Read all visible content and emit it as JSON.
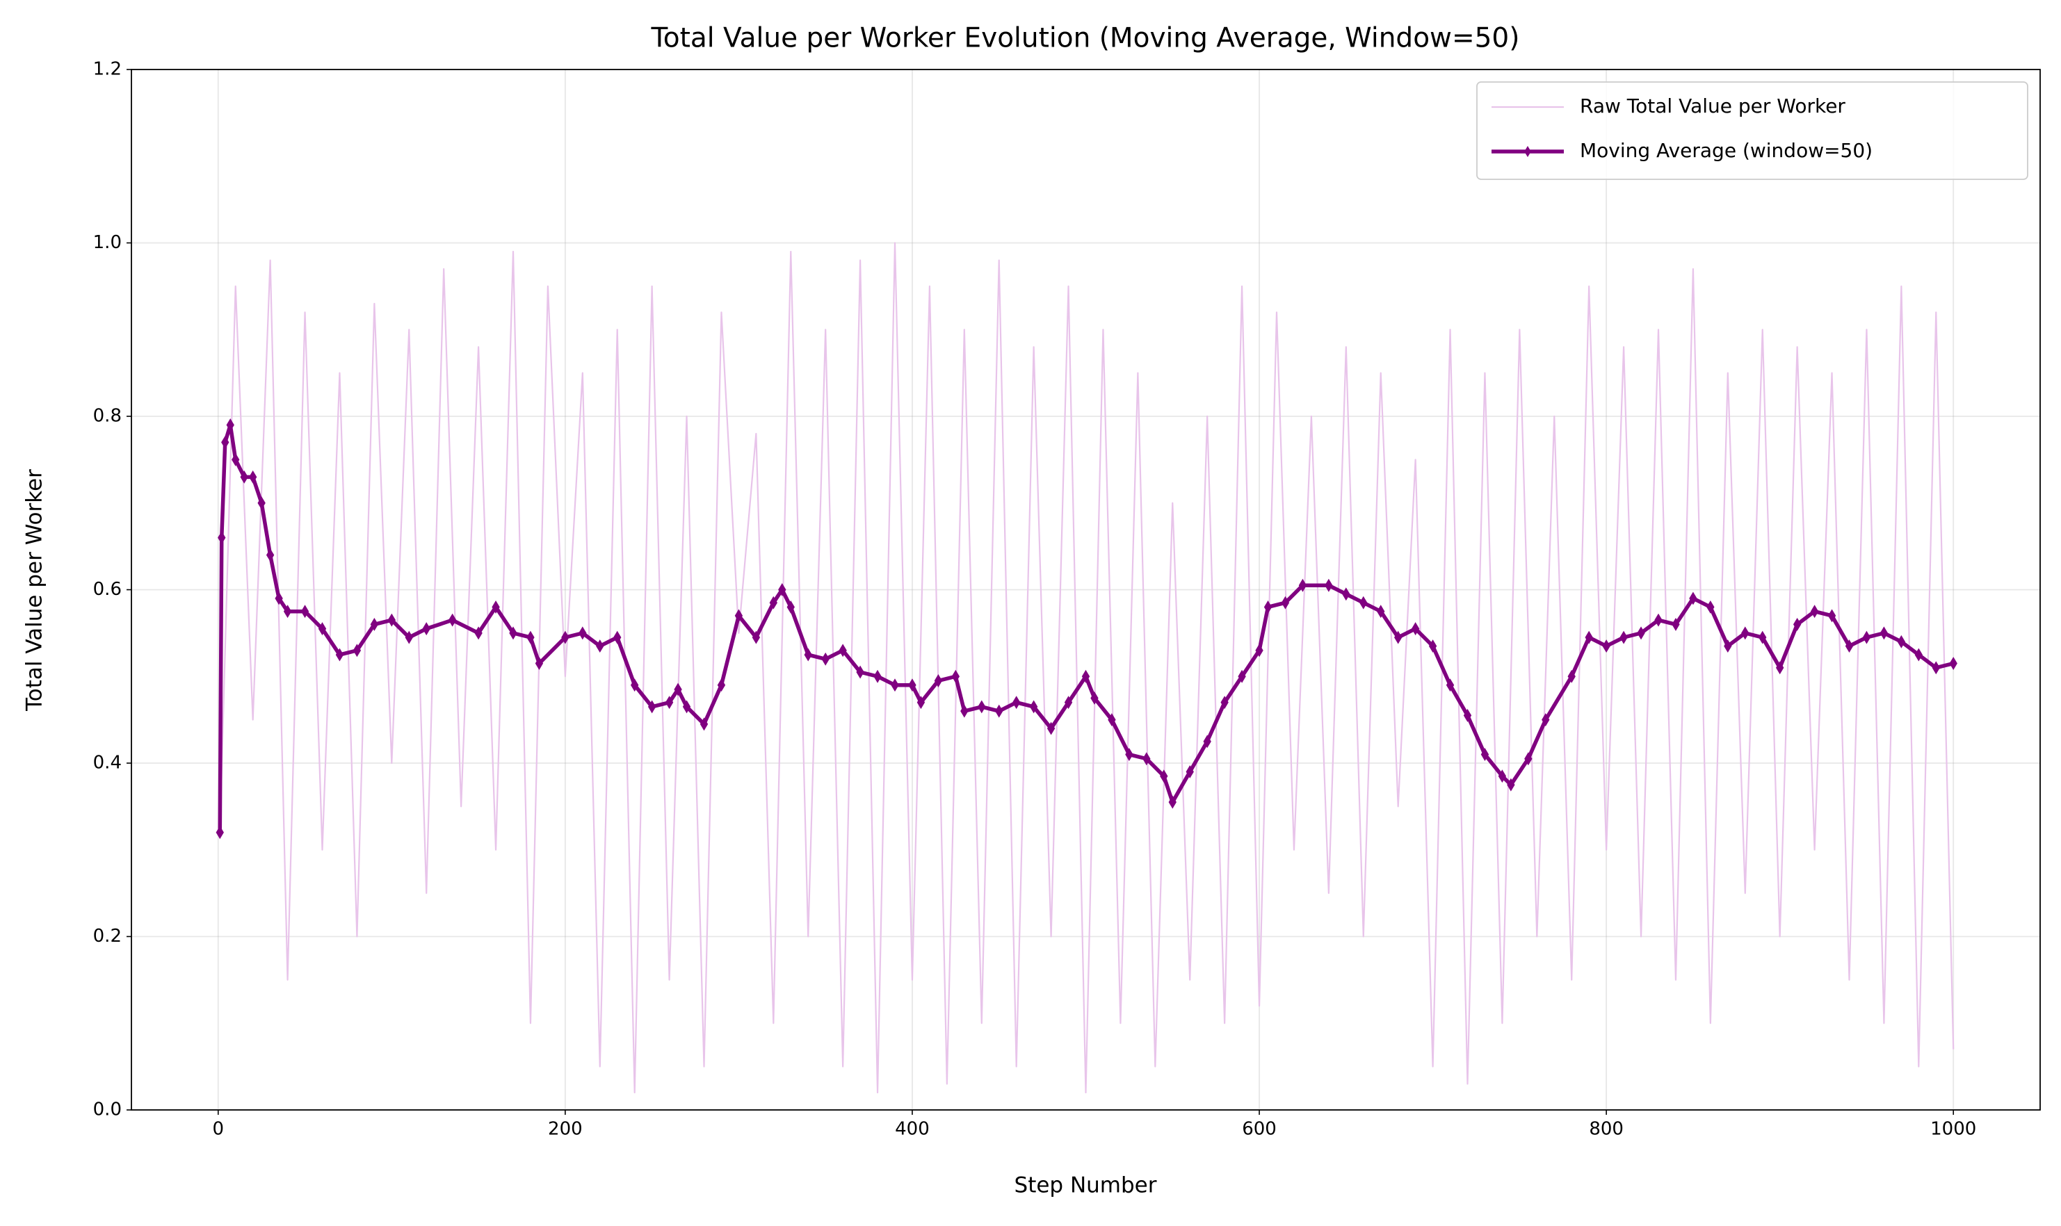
{
  "chart_data": {
    "type": "line",
    "title": "Total Value per Worker Evolution (Moving Average, Window=50)",
    "x_label": "Step Number",
    "y_label": "Total Value per Worker",
    "xlim": [
      -50,
      1050
    ],
    "ylim": [
      0,
      1.2
    ],
    "xticks": [
      0,
      200,
      400,
      600,
      800,
      1000
    ],
    "yticks": [
      {
        "value": 0,
        "label": "0.0"
      },
      0.2,
      0.4,
      0.6,
      0.8,
      {
        "value": 1,
        "label": "1.0"
      },
      1.2
    ],
    "grid": true,
    "legend": "upper right",
    "series": [
      {
        "name": "Raw Total Value per Worker",
        "color": "#e8c4ea",
        "marker": "none",
        "x": [
          1,
          10,
          20,
          30,
          40,
          50,
          60,
          70,
          80,
          90,
          100,
          110,
          120,
          130,
          140,
          150,
          160,
          170,
          180,
          190,
          200,
          210,
          220,
          230,
          240,
          250,
          260,
          270,
          280,
          290,
          300,
          310,
          320,
          330,
          340,
          350,
          360,
          370,
          380,
          390,
          400,
          410,
          420,
          430,
          440,
          450,
          460,
          470,
          480,
          490,
          500,
          510,
          520,
          530,
          540,
          550,
          560,
          570,
          580,
          590,
          600,
          610,
          620,
          630,
          640,
          650,
          660,
          670,
          680,
          690,
          700,
          710,
          720,
          730,
          740,
          750,
          760,
          770,
          780,
          790,
          800,
          810,
          820,
          830,
          840,
          850,
          860,
          870,
          880,
          890,
          900,
          910,
          920,
          930,
          940,
          950,
          960,
          970,
          980,
          990,
          1000
        ],
        "values": [
          0.32,
          0.95,
          0.45,
          0.98,
          0.15,
          0.92,
          0.3,
          0.85,
          0.2,
          0.93,
          0.4,
          0.9,
          0.25,
          0.97,
          0.35,
          0.88,
          0.3,
          0.99,
          0.1,
          0.95,
          0.5,
          0.85,
          0.05,
          0.9,
          0.02,
          0.95,
          0.15,
          0.8,
          0.05,
          0.92,
          0.55,
          0.78,
          0.1,
          0.99,
          0.2,
          0.9,
          0.05,
          0.98,
          0.02,
          1.0,
          0.15,
          0.95,
          0.03,
          0.9,
          0.1,
          0.98,
          0.05,
          0.88,
          0.2,
          0.95,
          0.02,
          0.9,
          0.1,
          0.85,
          0.05,
          0.7,
          0.15,
          0.8,
          0.1,
          0.95,
          0.12,
          0.92,
          0.3,
          0.8,
          0.25,
          0.88,
          0.2,
          0.85,
          0.35,
          0.75,
          0.05,
          0.9,
          0.03,
          0.85,
          0.1,
          0.9,
          0.2,
          0.8,
          0.15,
          0.95,
          0.3,
          0.88,
          0.2,
          0.9,
          0.15,
          0.97,
          0.1,
          0.85,
          0.25,
          0.9,
          0.2,
          0.88,
          0.3,
          0.85,
          0.15,
          0.9,
          0.1,
          0.95,
          0.05,
          0.92,
          0.07
        ]
      },
      {
        "name": "Moving Average (window=50)",
        "color": "#800080",
        "marker": "diamond",
        "x": [
          1,
          2,
          4,
          7,
          10,
          15,
          20,
          25,
          30,
          35,
          40,
          50,
          60,
          70,
          80,
          90,
          100,
          110,
          120,
          135,
          150,
          160,
          170,
          180,
          185,
          200,
          210,
          220,
          230,
          240,
          250,
          260,
          265,
          270,
          280,
          290,
          300,
          310,
          320,
          325,
          330,
          340,
          350,
          360,
          370,
          380,
          390,
          400,
          405,
          415,
          425,
          430,
          440,
          450,
          460,
          470,
          480,
          490,
          500,
          505,
          515,
          525,
          535,
          545,
          550,
          560,
          570,
          580,
          590,
          600,
          605,
          615,
          625,
          640,
          650,
          660,
          670,
          680,
          690,
          700,
          710,
          720,
          730,
          740,
          745,
          755,
          765,
          780,
          790,
          800,
          810,
          820,
          830,
          840,
          850,
          860,
          870,
          880,
          890,
          900,
          910,
          920,
          930,
          940,
          950,
          960,
          970,
          980,
          990,
          1000
        ],
        "values": [
          0.32,
          0.66,
          0.77,
          0.79,
          0.75,
          0.73,
          0.73,
          0.7,
          0.64,
          0.59,
          0.575,
          0.575,
          0.555,
          0.525,
          0.53,
          0.56,
          0.565,
          0.545,
          0.555,
          0.565,
          0.55,
          0.58,
          0.55,
          0.545,
          0.515,
          0.545,
          0.55,
          0.535,
          0.545,
          0.49,
          0.465,
          0.47,
          0.485,
          0.465,
          0.445,
          0.49,
          0.57,
          0.545,
          0.585,
          0.6,
          0.58,
          0.525,
          0.52,
          0.53,
          0.505,
          0.5,
          0.49,
          0.49,
          0.47,
          0.495,
          0.5,
          0.46,
          0.465,
          0.46,
          0.47,
          0.465,
          0.44,
          0.47,
          0.5,
          0.475,
          0.45,
          0.41,
          0.405,
          0.385,
          0.355,
          0.39,
          0.425,
          0.47,
          0.5,
          0.53,
          0.58,
          0.585,
          0.605,
          0.605,
          0.595,
          0.585,
          0.575,
          0.545,
          0.555,
          0.535,
          0.49,
          0.455,
          0.41,
          0.385,
          0.375,
          0.405,
          0.45,
          0.5,
          0.545,
          0.535,
          0.545,
          0.55,
          0.565,
          0.56,
          0.59,
          0.58,
          0.535,
          0.55,
          0.545,
          0.51,
          0.56,
          0.575,
          0.57,
          0.535,
          0.545,
          0.55,
          0.54,
          0.525,
          0.51,
          0.515
        ]
      }
    ]
  }
}
